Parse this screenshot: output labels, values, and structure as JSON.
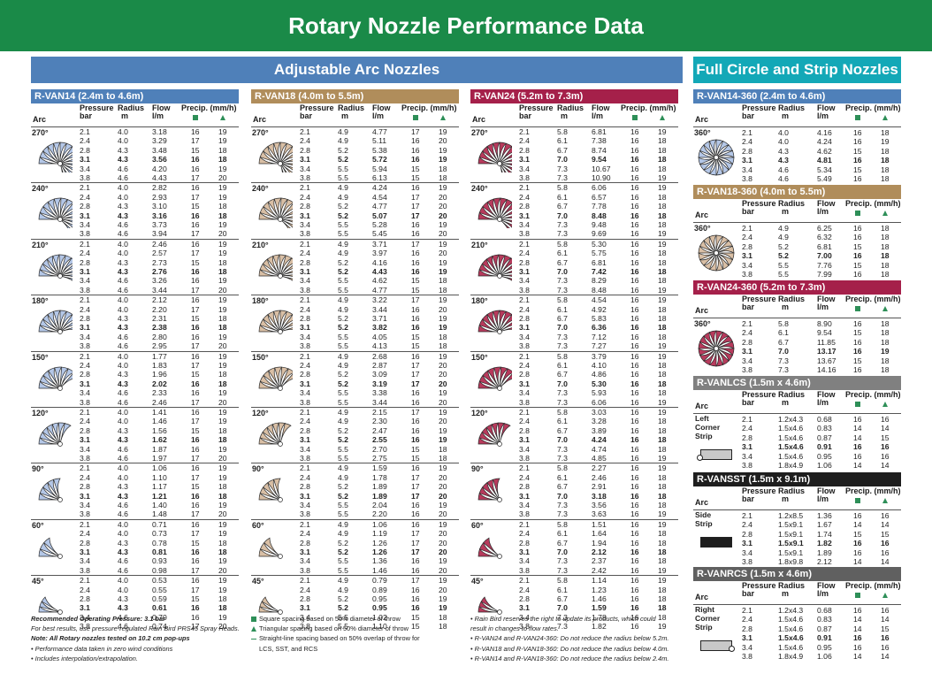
{
  "title": "Rotary Nozzle Performance Data",
  "sections": {
    "adjustable": "Adjustable Arc Nozzles",
    "full": "Full Circle and Strip Nozzles"
  },
  "cols": {
    "arc": "Arc",
    "pressure": "Pressure",
    "bar": "bar",
    "radius": "Radius",
    "m": "m",
    "flow": "Flow",
    "lm": "l/m",
    "precip": "Precip. (mm/h)"
  },
  "colors": {
    "van14": "#b4c7e7",
    "van18": "#d9bfa5",
    "van24": "#b73a5c",
    "panelhead14": "#4f80b9",
    "panelhead18": "#b08d5b",
    "panelhead24": "#a5204a",
    "lcs": "#808080",
    "sst": "#1e1e1e",
    "rcs": "#606060",
    "green": "#2e8f58"
  },
  "arcs": [
    "270°",
    "240°",
    "210°",
    "180°",
    "150°",
    "120°",
    "90°",
    "60°",
    "45°"
  ],
  "pressures": [
    "2.1",
    "2.4",
    "2.8",
    "3.1",
    "3.4",
    "3.8"
  ],
  "adjustable": [
    {
      "title": "R-VAN14  (2.4m to 4.6m)",
      "radius": [
        "4.0",
        "4.0",
        "4.3",
        "4.3",
        "4.6",
        "4.6"
      ],
      "flows": [
        [
          "3.18",
          "3.29",
          "3.48",
          "3.56",
          "4.20",
          "4.43"
        ],
        [
          "2.82",
          "2.93",
          "3.10",
          "3.16",
          "3.73",
          "3.94"
        ],
        [
          "2.46",
          "2.57",
          "2.73",
          "2.76",
          "3.26",
          "3.44"
        ],
        [
          "2.12",
          "2.20",
          "2.31",
          "2.38",
          "2.80",
          "2.95"
        ],
        [
          "1.77",
          "1.83",
          "1.96",
          "2.02",
          "2.33",
          "2.46"
        ],
        [
          "1.41",
          "1.46",
          "1.56",
          "1.62",
          "1.87",
          "1.97"
        ],
        [
          "1.06",
          "1.10",
          "1.17",
          "1.21",
          "1.40",
          "1.48"
        ],
        [
          "0.71",
          "0.73",
          "0.78",
          "0.81",
          "0.93",
          "0.98"
        ],
        [
          "0.53",
          "0.55",
          "0.59",
          "0.61",
          "0.70",
          "0.74"
        ]
      ],
      "sq": [
        "16",
        "17",
        "15",
        "16",
        "16",
        "17"
      ],
      "tri": [
        "19",
        "19",
        "18",
        "18",
        "19",
        "20"
      ]
    },
    {
      "title": "R-VAN18  (4.0m to 5.5m)",
      "radius": [
        "4.9",
        "4.9",
        "5.2",
        "5.2",
        "5.5",
        "5.5"
      ],
      "flows": [
        [
          "4.77",
          "5.11",
          "5.38",
          "5.72",
          "5.94",
          "6.13"
        ],
        [
          "4.24",
          "4.54",
          "4.77",
          "5.07",
          "5.28",
          "5.45"
        ],
        [
          "3.71",
          "3.97",
          "4.16",
          "4.43",
          "4.62",
          "4.77"
        ],
        [
          "3.22",
          "3.44",
          "3.71",
          "3.82",
          "4.05",
          "4.13"
        ],
        [
          "2.68",
          "2.87",
          "3.09",
          "3.19",
          "3.38",
          "3.44"
        ],
        [
          "2.15",
          "2.30",
          "2.47",
          "2.55",
          "2.70",
          "2.75"
        ],
        [
          "1.59",
          "1.78",
          "1.89",
          "1.89",
          "2.04",
          "2.20"
        ],
        [
          "1.06",
          "1.19",
          "1.26",
          "1.26",
          "1.36",
          "1.46"
        ],
        [
          "0.79",
          "0.89",
          "0.95",
          "0.95",
          "1.02",
          "1.10"
        ]
      ],
      "sq": [
        "17",
        "16",
        "16",
        "16",
        "15",
        "15"
      ],
      "tri": [
        "19",
        "20",
        "19",
        "19",
        "18",
        "18"
      ],
      "sqAlt": [
        "16",
        "17",
        "17",
        "17",
        "16",
        "16"
      ],
      "triAlt": [
        "19",
        "20",
        "20",
        "20",
        "19",
        "20"
      ]
    },
    {
      "title": "R-VAN24  (5.2m to 7.3m)",
      "radius": [
        "5.8",
        "6.1",
        "6.7",
        "7.0",
        "7.3",
        "7.3"
      ],
      "flows": [
        [
          "6.81",
          "7.38",
          "8.74",
          "9.54",
          "10.67",
          "10.90"
        ],
        [
          "6.06",
          "6.57",
          "7.78",
          "8.48",
          "9.48",
          "9.69"
        ],
        [
          "5.30",
          "5.75",
          "6.81",
          "7.42",
          "8.29",
          "8.48"
        ],
        [
          "4.54",
          "4.92",
          "5.83",
          "6.36",
          "7.12",
          "7.27"
        ],
        [
          "3.79",
          "4.10",
          "4.86",
          "5.30",
          "5.93",
          "6.06"
        ],
        [
          "3.03",
          "3.28",
          "3.89",
          "4.24",
          "4.74",
          "4.85"
        ],
        [
          "2.27",
          "2.46",
          "2.91",
          "3.18",
          "3.56",
          "3.63"
        ],
        [
          "1.51",
          "1.64",
          "1.94",
          "2.12",
          "2.37",
          "2.42"
        ],
        [
          "1.14",
          "1.23",
          "1.46",
          "1.59",
          "1.78",
          "1.82"
        ]
      ],
      "sq": [
        "16",
        "16",
        "16",
        "16",
        "16",
        "16"
      ],
      "tri": [
        "19",
        "18",
        "18",
        "18",
        "18",
        "19"
      ]
    }
  ],
  "full": [
    {
      "title": "R-VAN14-360  (2.4m to 4.6m)",
      "arc": "360°",
      "radius": [
        "4.0",
        "4.0",
        "4.3",
        "4.3",
        "4.6",
        "4.6"
      ],
      "flow": [
        "4.16",
        "4.24",
        "4.62",
        "4.81",
        "5.34",
        "5.49"
      ],
      "sq": [
        "16",
        "16",
        "15",
        "16",
        "15",
        "16"
      ],
      "tri": [
        "18",
        "19",
        "18",
        "18",
        "18",
        "18"
      ]
    },
    {
      "title": "R-VAN18-360  (4.0m to 5.5m)",
      "arc": "360°",
      "radius": [
        "4.9",
        "4.9",
        "5.2",
        "5.2",
        "5.5",
        "5.5"
      ],
      "flow": [
        "6.25",
        "6.32",
        "6.81",
        "7.00",
        "7.76",
        "7.99"
      ],
      "sq": [
        "16",
        "16",
        "15",
        "16",
        "15",
        "16"
      ],
      "tri": [
        "18",
        "18",
        "18",
        "18",
        "18",
        "18"
      ]
    },
    {
      "title": "R-VAN24-360  (5.2m to 7.3m)",
      "arc": "360°",
      "pressures": [
        "2.1",
        "2.4",
        "2.8",
        "3.1",
        "3.4",
        "3.8"
      ],
      "radius": [
        "5.8",
        "6.1",
        "6.7",
        "7.0",
        "7.3",
        "7.3"
      ],
      "flow": [
        "8.90",
        "9.54",
        "11.85",
        "13.17",
        "13.67",
        "14.16"
      ],
      "sq": [
        "16",
        "15",
        "16",
        "16",
        "15",
        "16"
      ],
      "tri": [
        "18",
        "18",
        "18",
        "19",
        "18",
        "18"
      ]
    },
    {
      "title": "R-VANLCS  (1.5m x 4.6m)",
      "label": [
        "Left",
        "Corner",
        "Strip"
      ],
      "radius": [
        "1.2x4.3",
        "1.5x4.6",
        "1.5x4.6",
        "1.5x4.6",
        "1.5x4.6",
        "1.8x4.9"
      ],
      "flow": [
        "0.68",
        "0.83",
        "0.87",
        "0.91",
        "0.95",
        "1.06"
      ],
      "sq": [
        "16",
        "14",
        "14",
        "16",
        "16",
        "14"
      ],
      "tri": [
        "16",
        "14",
        "15",
        "16",
        "16",
        "14"
      ]
    },
    {
      "title": "R-VANSST  (1.5m x 9.1m)",
      "label": [
        "Side",
        "Strip"
      ],
      "radius": [
        "1.2x8.5",
        "1.5x9.1",
        "1.5x9.1",
        "1.5x9.1",
        "1.5x9.1",
        "1.8x9.8"
      ],
      "flow": [
        "1.36",
        "1.67",
        "1.74",
        "1.82",
        "1.89",
        "2.12"
      ],
      "sq": [
        "16",
        "14",
        "15",
        "16",
        "16",
        "14"
      ],
      "tri": [
        "16",
        "14",
        "15",
        "16",
        "16",
        "14"
      ]
    },
    {
      "title": "R-VANRCS  (1.5m x 4.6m)",
      "label": [
        "Right",
        "Corner",
        "Strip"
      ],
      "radius": [
        "1.2x4.3",
        "1.5x4.6",
        "1.5x4.6",
        "1.5x4.6",
        "1.5x4.6",
        "1.8x4.9"
      ],
      "flow": [
        "0.68",
        "0.83",
        "0.87",
        "0.91",
        "0.95",
        "1.06"
      ],
      "sq": [
        "16",
        "14",
        "14",
        "16",
        "16",
        "14"
      ],
      "tri": [
        "16",
        "14",
        "15",
        "16",
        "16",
        "14"
      ]
    }
  ],
  "footer": {
    "col1": [
      "Recommended Operating Pressure: 3.1 bar",
      "For best results, use pressure-regulated Rain Bird PRS45 Spray Heads.",
      "Note: All Rotary nozzles tested on 10.2 cm pop-ups",
      "• Performance data taken in zero wind conditions",
      "• Includes interpolation/extrapolation."
    ],
    "col2": [
      "Square spacing based on 50% diameter of throw",
      "Triangular spacing based on 50% diameter of throw",
      "Straight-line spacing based on 50% overlap of throw for",
      "LCS, SST, and RCS"
    ],
    "col3": [
      "• Rain Bird reserves the right to update its products, which could",
      "  result in changes to flow rates.",
      "• R-VAN24 and R-VAN24-360: Do not reduce the radius below 5.2m.",
      "• R-VAN18 and R-VAN18-360: Do not reduce the radius below 4.0m.",
      "• R-VAN14 and R-VAN18-360: Do not reduce the radius below 2.4m."
    ]
  }
}
